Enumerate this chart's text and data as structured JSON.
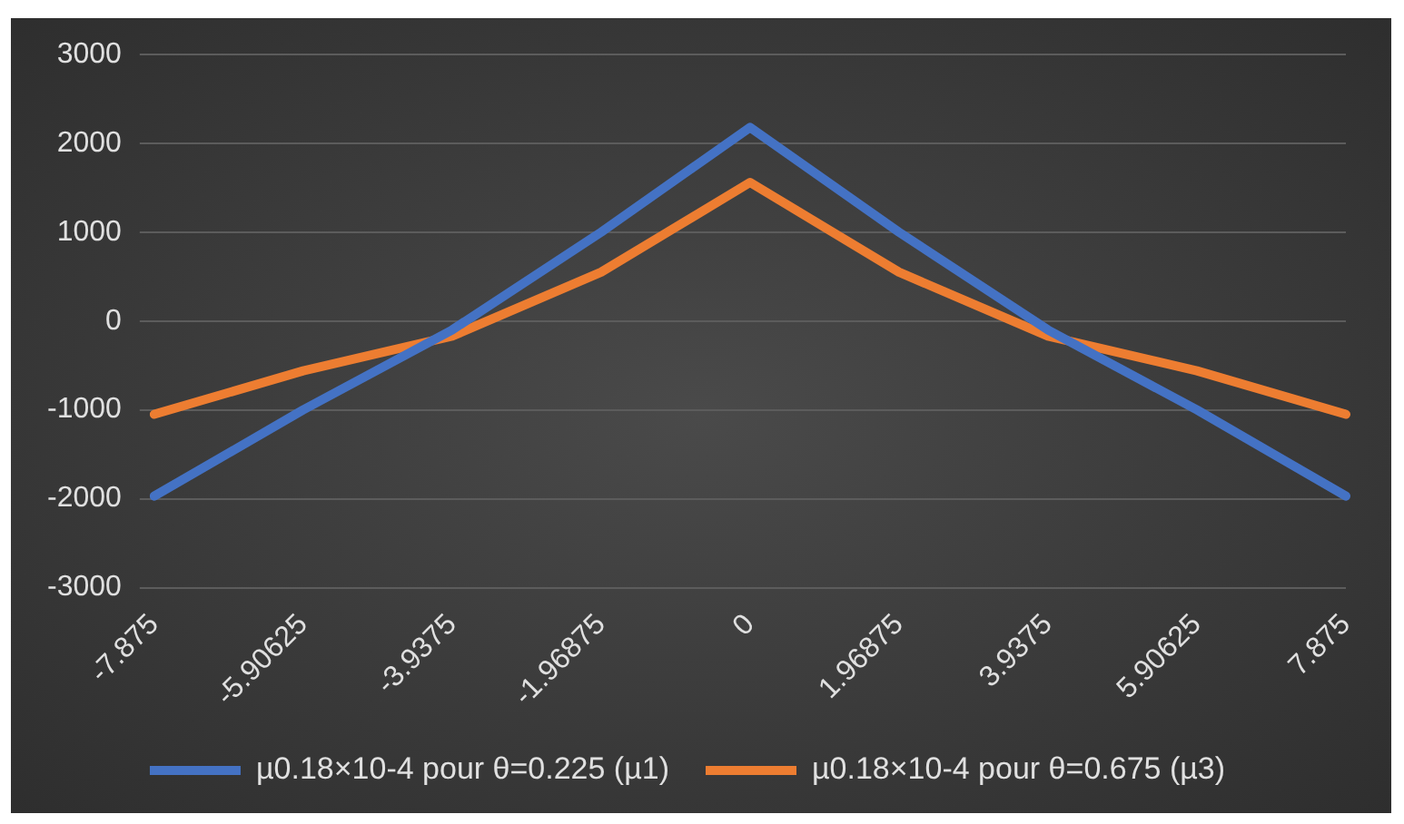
{
  "chart_data": {
    "type": "line",
    "categories": [
      "-7.875",
      "-5.90625",
      "-3.9375",
      "-1.96875",
      "0",
      "1.96875",
      "3.9375",
      "5.90625",
      "7.875"
    ],
    "series": [
      {
        "name": "µ0.18×10-4 pour θ=0.225 (µ1)",
        "color": "#4472c4",
        "values": [
          -1970,
          -1000,
          -100,
          1000,
          2180,
          1000,
          -100,
          -1000,
          -1970
        ]
      },
      {
        "name": "µ0.18×10-4 pour θ=0.675 (µ3)",
        "color": "#ed7d31",
        "values": [
          -1050,
          -560,
          -170,
          550,
          1560,
          550,
          -170,
          -560,
          -1050
        ]
      }
    ],
    "ylim": [
      -3000,
      3000
    ],
    "yticks": [
      -3000,
      -2000,
      -1000,
      0,
      1000,
      2000,
      3000
    ],
    "grid": "y",
    "legend": "bottom",
    "marker": "none",
    "line_style": "solid"
  }
}
